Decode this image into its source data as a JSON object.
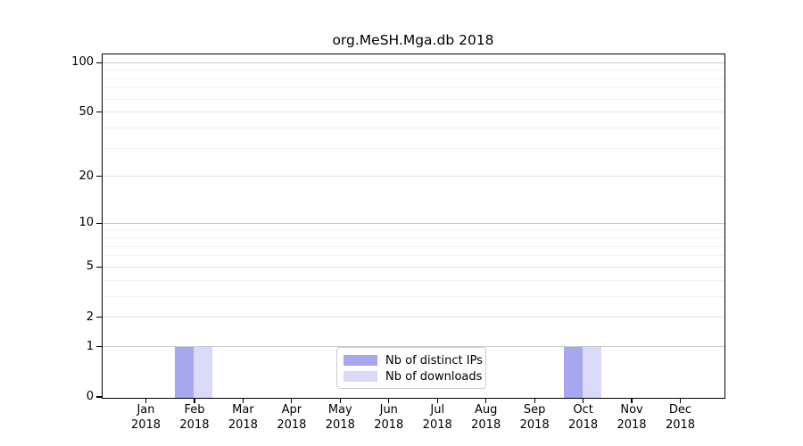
{
  "chart_data": {
    "type": "bar",
    "title": "org.MeSH.Mga.db 2018",
    "categories": [
      "Jan",
      "Feb",
      "Mar",
      "Apr",
      "May",
      "Jun",
      "Jul",
      "Aug",
      "Sep",
      "Oct",
      "Nov",
      "Dec"
    ],
    "x_tick_second_line": "2018",
    "series": [
      {
        "name": "Nb of distinct IPs",
        "values": [
          0,
          1,
          0,
          0,
          0,
          0,
          0,
          0,
          0,
          1,
          0,
          0
        ],
        "color": "#a7a7f0"
      },
      {
        "name": "Nb of downloads",
        "values": [
          0,
          1,
          0,
          0,
          0,
          0,
          0,
          0,
          0,
          1,
          0,
          0
        ],
        "color": "#d9d9f8"
      }
    ],
    "xlabel": "",
    "ylabel": "",
    "y_scale": "log1p",
    "ylim": [
      0,
      112
    ],
    "y_ticks": [
      0,
      1,
      2,
      5,
      10,
      20,
      50,
      100
    ],
    "y_minor_gridlines": [
      3,
      4,
      6,
      7,
      8,
      9,
      30,
      40,
      60,
      70,
      80,
      90
    ],
    "grid": true,
    "legend_position": "lower center"
  },
  "legend": {
    "items": [
      {
        "label": "Nb of distinct IPs"
      },
      {
        "label": "Nb of downloads"
      }
    ]
  },
  "colors": {
    "distinct_ips": "#a7a7f0",
    "downloads": "#d9d9f8",
    "grid_power10": "#c9c9c9",
    "grid_labeled": "#e4e4e4",
    "grid_minor": "#f2f2f2",
    "spine": "#000000",
    "legend_border": "#cccccc",
    "background": "#ffffff"
  }
}
